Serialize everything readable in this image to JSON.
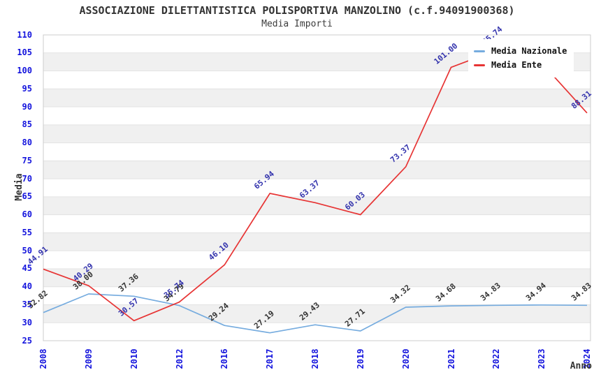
{
  "chart_data": {
    "type": "line",
    "title": "ASSOCIAZIONE DILETTANTISTICA POLISPORTIVA MANZOLINO (c.f.94091900368)",
    "subtitle": "Media Importi",
    "xlabel": "Anno",
    "ylabel": "Media",
    "categories": [
      "2008",
      "2009",
      "2010",
      "2012",
      "2016",
      "2017",
      "2018",
      "2019",
      "2020",
      "2021",
      "2022",
      "2023",
      "2024"
    ],
    "ylim": [
      25,
      110
    ],
    "y_tick_step": 5,
    "grid": "horizontal gridlines every 5 units with alternating light-gray bands",
    "legend_position": "top-right inside plot, white box overlapping lines",
    "series": [
      {
        "name": "Media Nazionale",
        "color": "#76acdf",
        "label_color": "#333333",
        "values": [
          32.82,
          38.0,
          37.36,
          34.79,
          29.24,
          27.19,
          29.43,
          27.71,
          34.32,
          34.68,
          34.83,
          34.94,
          34.83
        ],
        "labels": [
          "32.82",
          "38.00",
          "37.36",
          "34.79",
          "29.24",
          "27.19",
          "29.43",
          "27.71",
          "34.32",
          "34.68",
          "34.83",
          "34.94",
          "34.83"
        ]
      },
      {
        "name": "Media Ente",
        "color": "#e73434",
        "label_color": "#3434ad",
        "values": [
          44.91,
          40.29,
          30.57,
          35.74,
          46.1,
          65.94,
          63.37,
          60.03,
          73.37,
          101.0,
          105.74,
          102.2,
          88.31
        ],
        "labels": [
          "44.91",
          "40.29",
          "30.57",
          "35.74",
          "46.10",
          "65.94",
          "63.37",
          "60.03",
          "73.37",
          "101.00",
          "105.74",
          "",
          "88.31"
        ]
      }
    ],
    "notes": "2023 Media Ente value label is hidden behind the legend box; value ~102 estimated from line position. 2024 Media Nazionale label is clipped at right edge."
  },
  "colors": {
    "background": "#ffffff",
    "band": "#f0f0f0",
    "gridline": "#e3e3e3",
    "plot_border": "#cccccc",
    "tick_text": "#1414dd",
    "title_text": "#333333",
    "axis_title_text": "#333333",
    "legend_text": "#111111"
  }
}
